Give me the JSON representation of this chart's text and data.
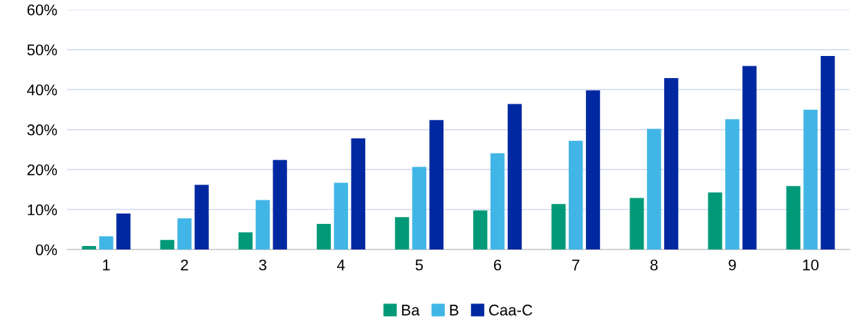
{
  "chart_data": {
    "type": "bar",
    "categories": [
      "1",
      "2",
      "3",
      "4",
      "5",
      "6",
      "7",
      "8",
      "9",
      "10"
    ],
    "series": [
      {
        "name": "Ba",
        "color": "#009a78",
        "values": [
          0.9,
          2.4,
          4.3,
          6.4,
          8.1,
          9.8,
          11.4,
          12.9,
          14.3,
          15.9
        ]
      },
      {
        "name": "B",
        "color": "#41b6e6",
        "values": [
          3.3,
          7.8,
          12.4,
          16.7,
          20.7,
          24.1,
          27.2,
          30.2,
          32.6,
          35.0
        ]
      },
      {
        "name": "Caa-C",
        "color": "#0028a0",
        "values": [
          9.0,
          16.2,
          22.4,
          27.8,
          32.4,
          36.4,
          39.8,
          42.9,
          45.9,
          48.4
        ]
      }
    ],
    "ylim": [
      0,
      60
    ],
    "yticks": [
      {
        "value": 0,
        "label": "0%"
      },
      {
        "value": 10,
        "label": "10%"
      },
      {
        "value": 20,
        "label": "20%"
      },
      {
        "value": 30,
        "label": "30%"
      },
      {
        "value": 40,
        "label": "40%"
      },
      {
        "value": 50,
        "label": "50%"
      },
      {
        "value": 60,
        "label": "60%"
      }
    ],
    "grid": "y",
    "legend": "bottom"
  }
}
